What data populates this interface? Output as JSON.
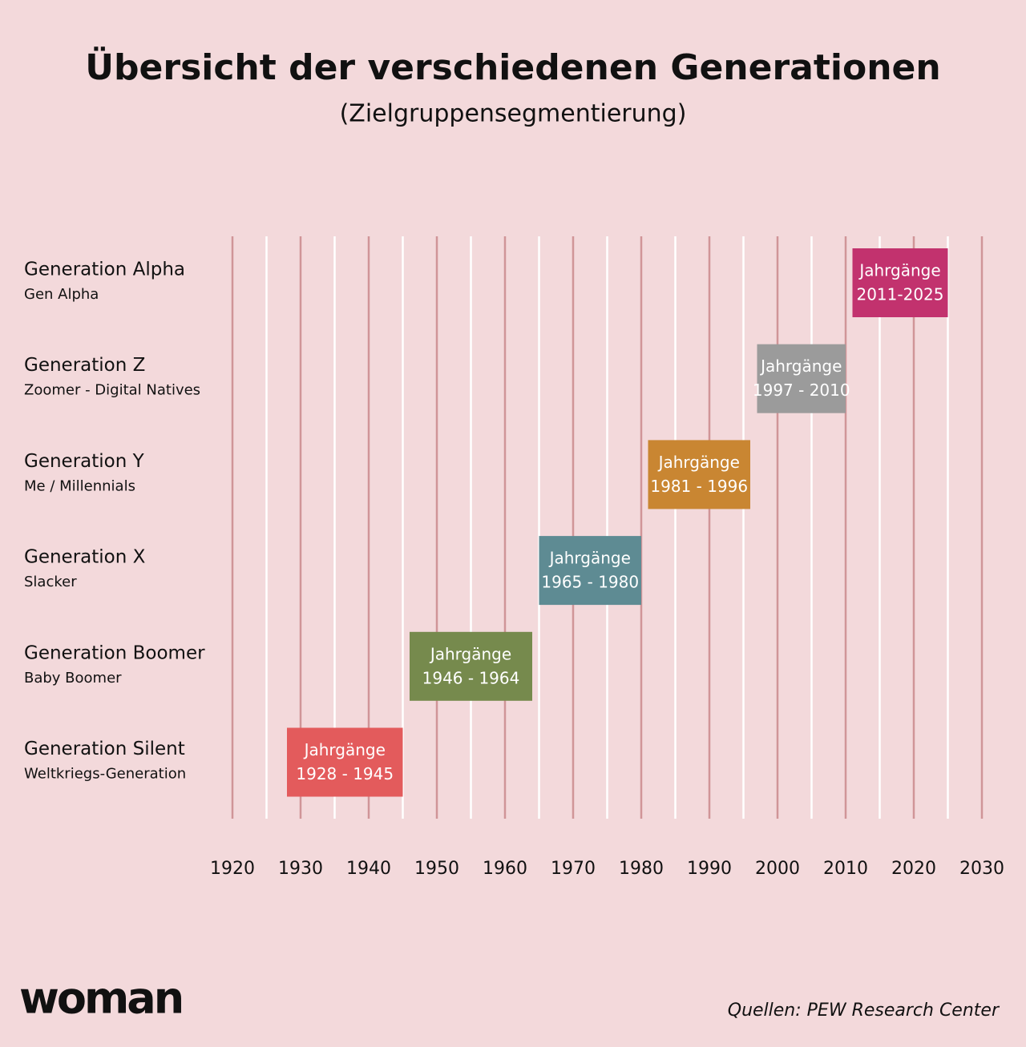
{
  "chart_data": {
    "type": "timeline",
    "title": "Übersicht der verschiedenen Generationen",
    "subtitle": "(Zielgruppensegmentierung)",
    "categories": [
      "Generation Alpha",
      "Generation Z",
      "Generation Y",
      "Generation X",
      "Generation Boomer",
      "Generation Silent"
    ],
    "category_subtitles": [
      "Gen Alpha",
      "Zoomer - Digital Natives",
      "Me / Millennials",
      "Slacker",
      "Baby Boomer",
      "Weltkriegs-Generation"
    ],
    "starts": [
      2011,
      1997,
      1981,
      1965,
      1946,
      1928
    ],
    "ends": [
      2025,
      2010,
      1996,
      1980,
      1964,
      1945
    ],
    "bar_heading": "Jahrgänge",
    "value_labels": [
      "2011-2025",
      "1997 - 2010",
      "1981 - 1996",
      "1965 - 1980",
      "1946 - 1964",
      "1928 - 1945"
    ],
    "colors": [
      "#c2326e",
      "#9b9b9b",
      "#c98632",
      "#5e8b93",
      "#768a4d",
      "#e35b5c"
    ],
    "xlim": [
      1920,
      2030
    ],
    "xticks": [
      1920,
      1930,
      1940,
      1950,
      1960,
      1970,
      1980,
      1990,
      2000,
      2010,
      2020,
      2030
    ],
    "minor_xticks": [
      1925,
      1935,
      1945,
      1955,
      1965,
      1975,
      1985,
      1995,
      2005,
      2015,
      2025
    ],
    "grid": true,
    "logo": "woman",
    "source": "Quellen: PEW Research Center"
  }
}
